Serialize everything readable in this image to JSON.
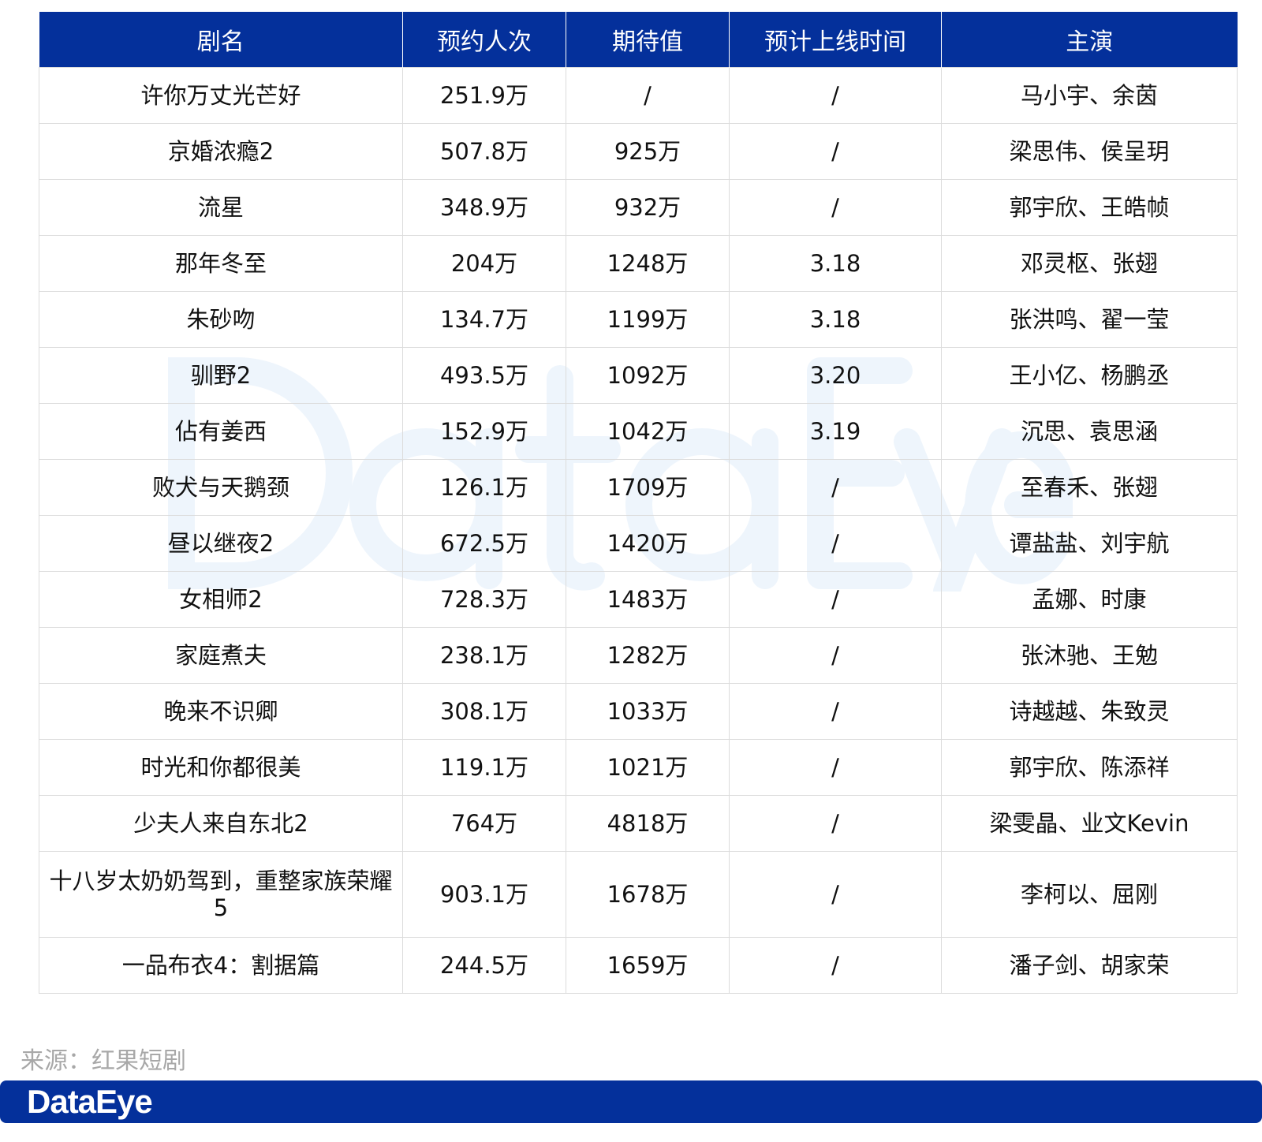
{
  "watermark": "DataEye",
  "table": {
    "headers": [
      "剧名",
      "预约人次",
      "期待值",
      "预计上线时间",
      "主演"
    ],
    "rows": [
      [
        "许你万丈光芒好",
        "251.9万",
        "/",
        "/",
        "马小宇、余茵"
      ],
      [
        "京婚浓瘾2",
        "507.8万",
        "925万",
        "/",
        "梁思伟、侯呈玥"
      ],
      [
        "流星",
        "348.9万",
        "932万",
        "/",
        "郭宇欣、王皓帧"
      ],
      [
        "那年冬至",
        "204万",
        "1248万",
        "3.18",
        "邓灵枢、张翅"
      ],
      [
        "朱砂吻",
        "134.7万",
        "1199万",
        "3.18",
        "张洪鸣、翟一莹"
      ],
      [
        "驯野2",
        "493.5万",
        "1092万",
        "3.20",
        "王小亿、杨鹏丞"
      ],
      [
        "佔有姜西",
        "152.9万",
        "1042万",
        "3.19",
        "沉思、袁思涵"
      ],
      [
        "败犬与天鹅颈",
        "126.1万",
        "1709万",
        "/",
        "至春禾、张翅"
      ],
      [
        "昼以继夜2",
        "672.5万",
        "1420万",
        "/",
        "谭盐盐、刘宇航"
      ],
      [
        "女相师2",
        "728.3万",
        "1483万",
        "/",
        "孟娜、时康"
      ],
      [
        "家庭煮夫",
        "238.1万",
        "1282万",
        "/",
        "张沐驰、王勉"
      ],
      [
        "晚来不识卿",
        "308.1万",
        "1033万",
        "/",
        "诗越越、朱致灵"
      ],
      [
        "时光和你都很美",
        "119.1万",
        "1021万",
        "/",
        "郭宇欣、陈添祥"
      ],
      [
        "少夫人来自东北2",
        "764万",
        "4818万",
        "/",
        "梁雯晶、业文Kevin"
      ],
      [
        "十八岁太奶奶驾到，重整家族荣耀5",
        "903.1万",
        "1678万",
        "/",
        "李柯以、屈刚"
      ],
      [
        "一品布衣4：割据篇",
        "244.5万",
        "1659万",
        "/",
        "潘子剑、胡家荣"
      ]
    ]
  },
  "source": "来源：红果短剧",
  "footer": {
    "logo": "DataEye"
  },
  "colors": {
    "header_bg": "#04309b",
    "footer_bg": "#04309b"
  }
}
